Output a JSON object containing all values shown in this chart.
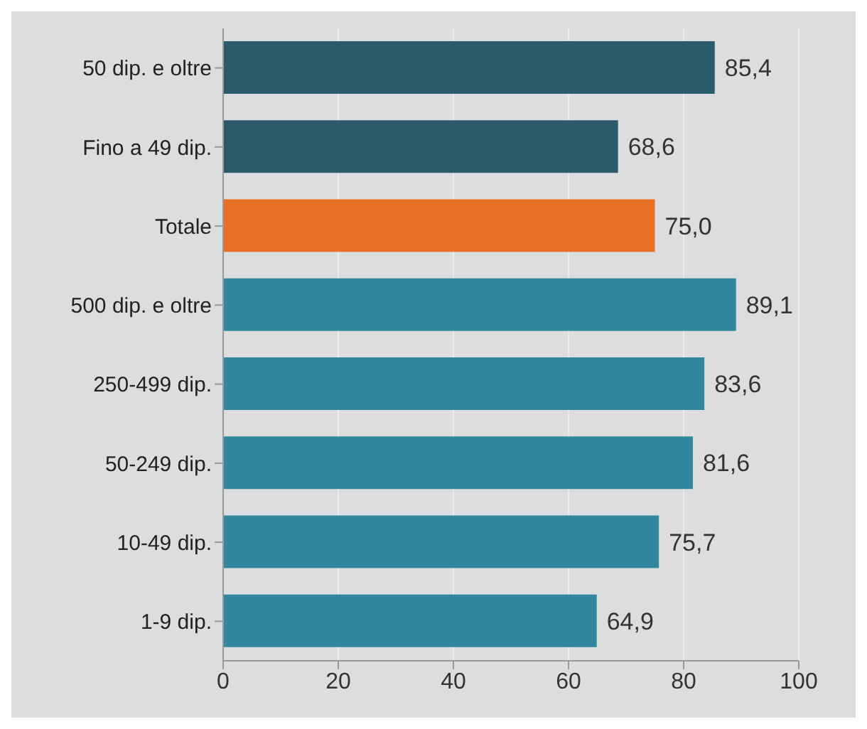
{
  "chart_data": {
    "type": "bar",
    "orientation": "horizontal",
    "categories": [
      "50 dip. e oltre",
      "Fino a 49 dip.",
      "Totale",
      "500 dip. e oltre",
      "250-499 dip.",
      "50-249 dip.",
      "10-49 dip.",
      "1-9 dip."
    ],
    "values": [
      85.4,
      68.6,
      75.0,
      89.1,
      83.6,
      81.6,
      75.7,
      64.9
    ],
    "value_labels": [
      "85,4",
      "68,6",
      "75,0",
      "89,1",
      "83,6",
      "81,6",
      "75,7",
      "64,9"
    ],
    "colors": [
      "#2b5b6b",
      "#2b5b6b",
      "#e87025",
      "#31879d",
      "#31879d",
      "#31879d",
      "#31879d",
      "#31879d"
    ],
    "xlim": [
      0,
      100
    ],
    "xticks": [
      0,
      20,
      40,
      60,
      80,
      100
    ],
    "grid": "x"
  }
}
